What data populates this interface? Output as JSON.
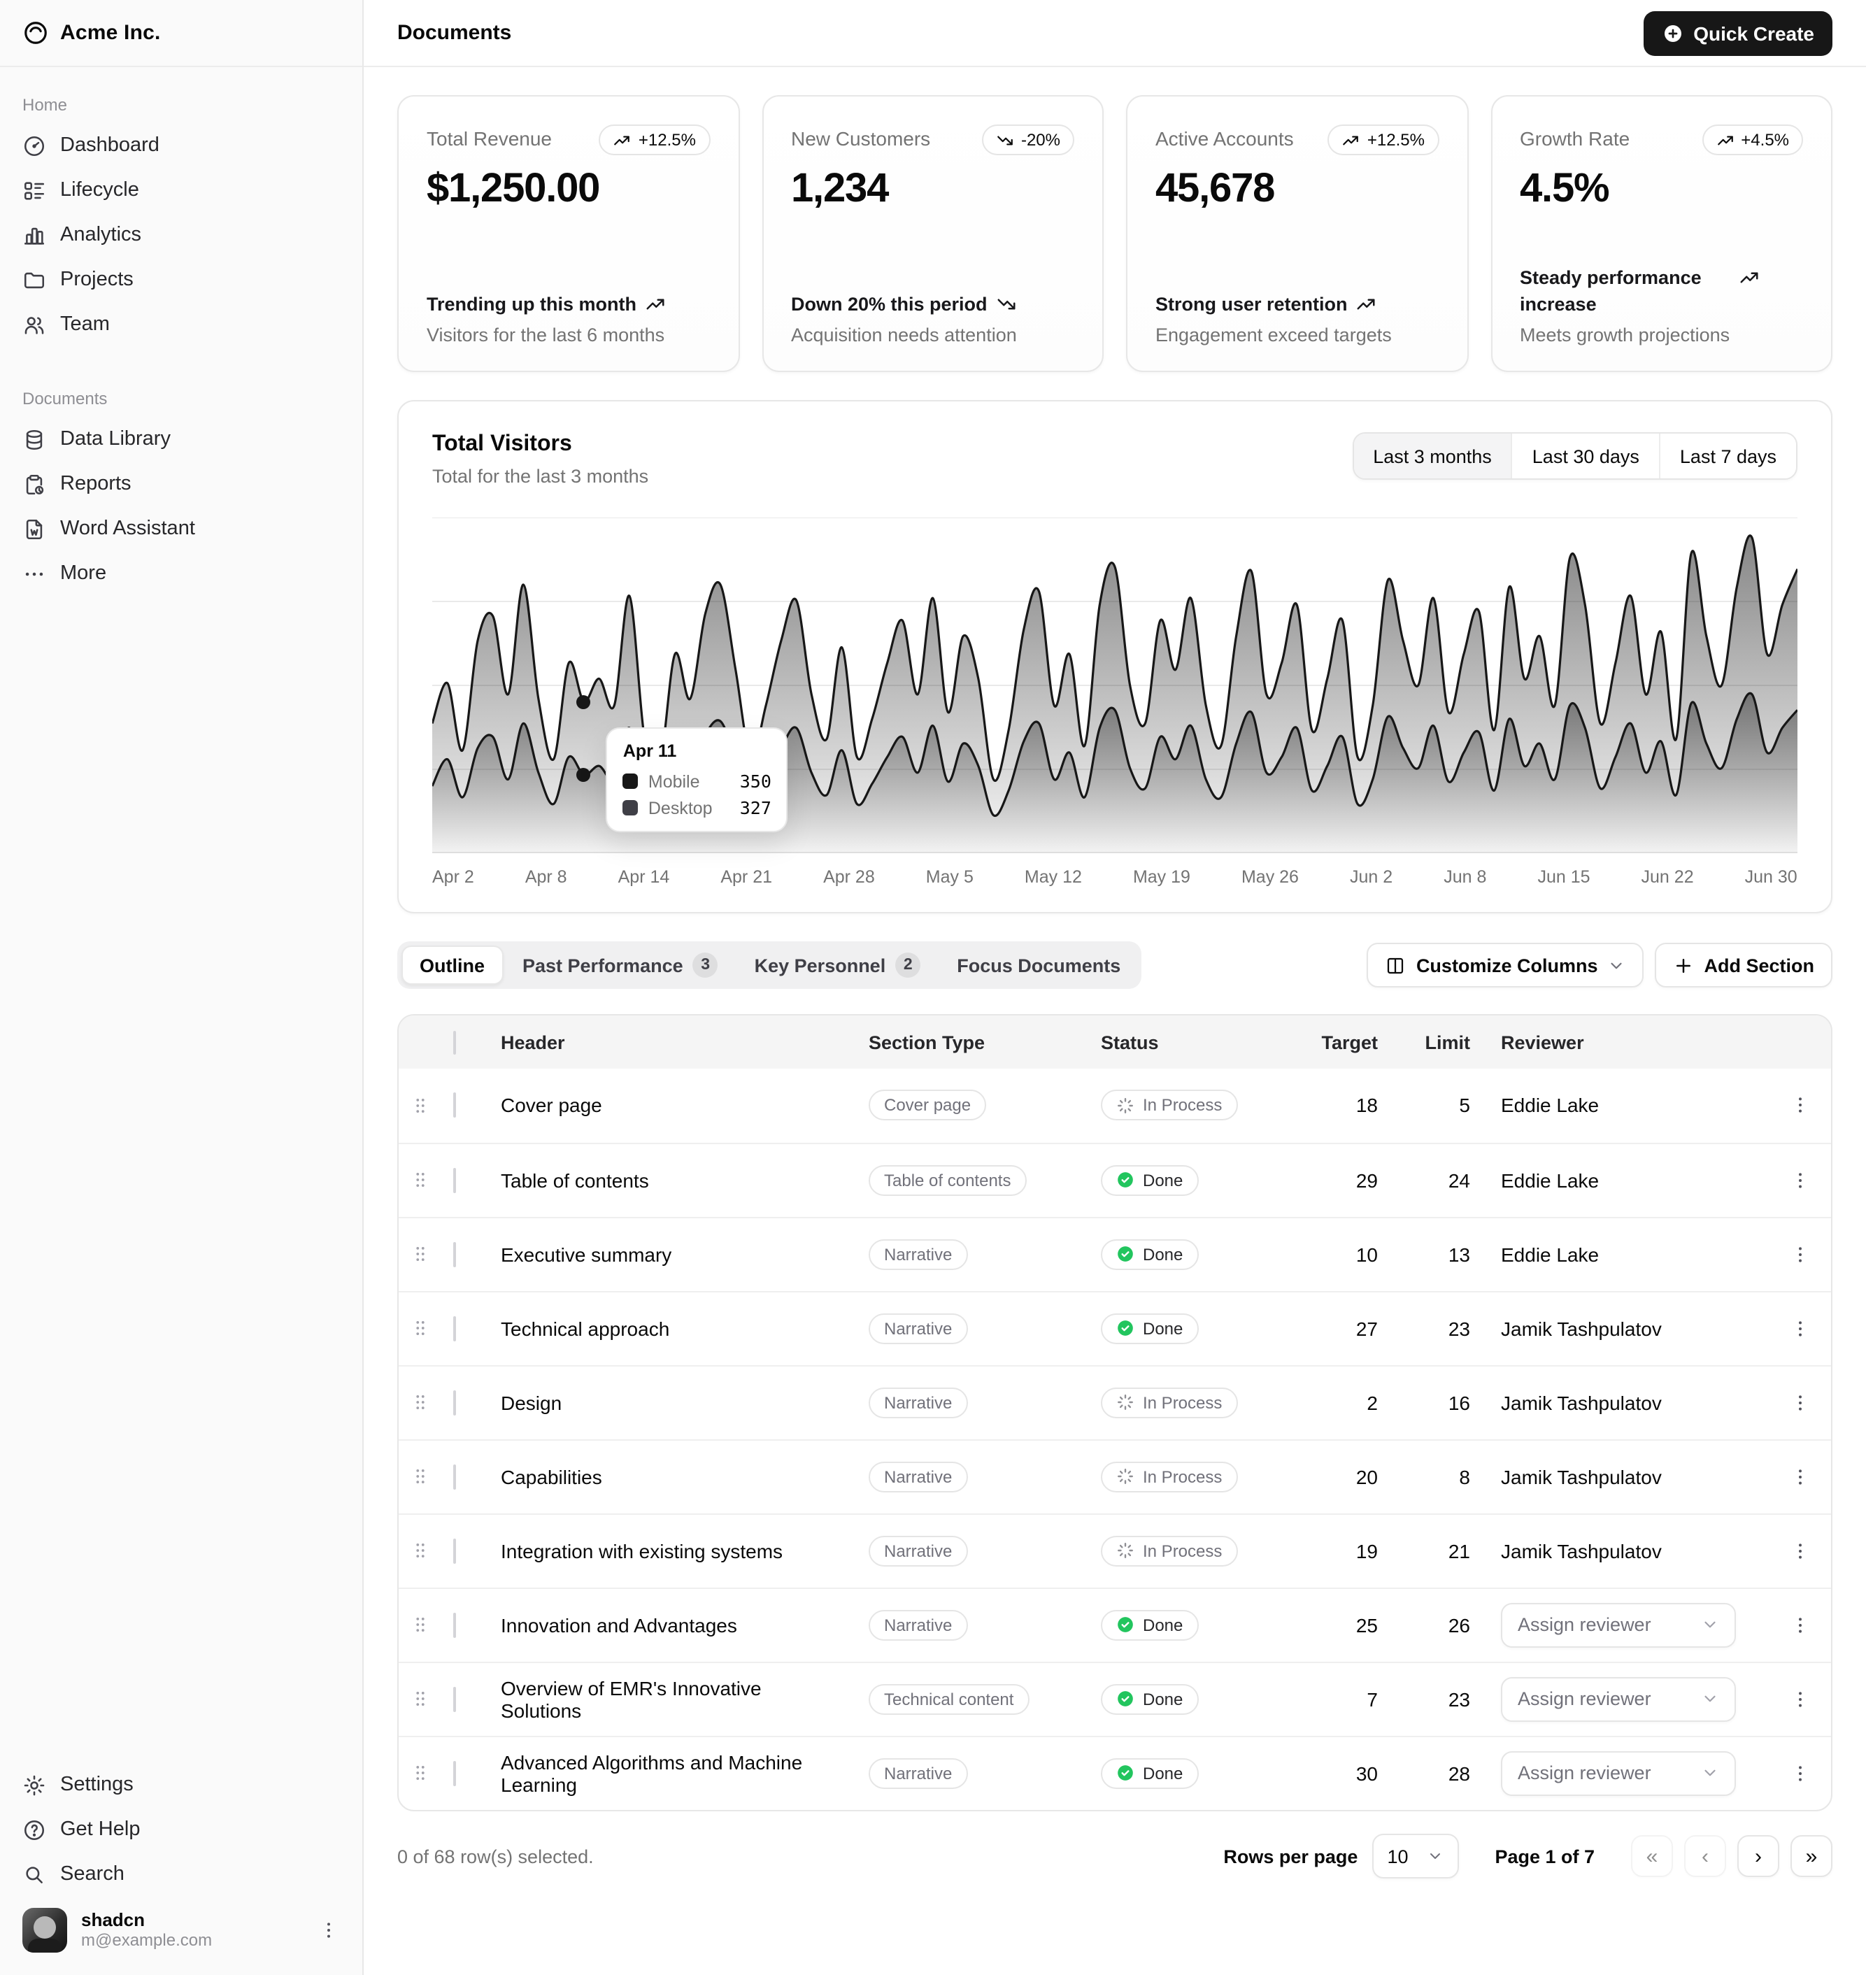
{
  "sidebar": {
    "brand": "Acme Inc.",
    "groups": [
      {
        "label": "Home",
        "items": [
          {
            "label": "Dashboard"
          },
          {
            "label": "Lifecycle"
          },
          {
            "label": "Analytics"
          },
          {
            "label": "Projects"
          },
          {
            "label": "Team"
          }
        ]
      },
      {
        "label": "Documents",
        "items": [
          {
            "label": "Data Library"
          },
          {
            "label": "Reports"
          },
          {
            "label": "Word Assistant"
          },
          {
            "label": "More"
          }
        ]
      }
    ],
    "footer_items": [
      {
        "label": "Settings"
      },
      {
        "label": "Get Help"
      },
      {
        "label": "Search"
      }
    ],
    "user": {
      "name": "shadcn",
      "email": "m@example.com"
    }
  },
  "header": {
    "title": "Documents",
    "quick_create_label": "Quick Create"
  },
  "cards": [
    {
      "label": "Total Revenue",
      "badge": "+12.5%",
      "trend": "up",
      "value": "$1,250.00",
      "line1": "Trending up this month",
      "line2": "Visitors for the last 6 months"
    },
    {
      "label": "New Customers",
      "badge": "-20%",
      "trend": "down",
      "value": "1,234",
      "line1": "Down 20% this period",
      "line2": "Acquisition needs attention"
    },
    {
      "label": "Active Accounts",
      "badge": "+12.5%",
      "trend": "up",
      "value": "45,678",
      "line1": "Strong user retention",
      "line2": "Engagement exceed targets"
    },
    {
      "label": "Growth Rate",
      "badge": "+4.5%",
      "trend": "up",
      "value": "4.5%",
      "line1": "Steady performance increase",
      "line2": "Meets growth projections"
    }
  ],
  "chart": {
    "title": "Total Visitors",
    "subtitle": "Total for the last 3 months",
    "ranges": [
      {
        "label": "Last 3 months",
        "active": true
      },
      {
        "label": "Last 30 days",
        "active": false
      },
      {
        "label": "Last 7 days",
        "active": false
      }
    ],
    "tooltip": {
      "date": "Apr 11",
      "rows": [
        {
          "label": "Mobile",
          "value": "350"
        },
        {
          "label": "Desktop",
          "value": "327"
        }
      ]
    }
  },
  "tabs": [
    {
      "label": "Outline",
      "active": true
    },
    {
      "label": "Past Performance",
      "badge": "3"
    },
    {
      "label": "Key Personnel",
      "badge": "2"
    },
    {
      "label": "Focus Documents"
    }
  ],
  "toolbar": {
    "customize_columns": "Customize Columns",
    "add_section": "Add Section"
  },
  "table": {
    "columns": {
      "header": "Header",
      "type": "Section Type",
      "status": "Status",
      "target": "Target",
      "limit": "Limit",
      "reviewer": "Reviewer"
    },
    "rows": [
      {
        "header": "Cover page",
        "type": "Cover page",
        "status": "In Process",
        "target": "18",
        "limit": "5",
        "reviewer": "Eddie Lake"
      },
      {
        "header": "Table of contents",
        "type": "Table of contents",
        "status": "Done",
        "target": "29",
        "limit": "24",
        "reviewer": "Eddie Lake"
      },
      {
        "header": "Executive summary",
        "type": "Narrative",
        "status": "Done",
        "target": "10",
        "limit": "13",
        "reviewer": "Eddie Lake"
      },
      {
        "header": "Technical approach",
        "type": "Narrative",
        "status": "Done",
        "target": "27",
        "limit": "23",
        "reviewer": "Jamik Tashpulatov"
      },
      {
        "header": "Design",
        "type": "Narrative",
        "status": "In Process",
        "target": "2",
        "limit": "16",
        "reviewer": "Jamik Tashpulatov"
      },
      {
        "header": "Capabilities",
        "type": "Narrative",
        "status": "In Process",
        "target": "20",
        "limit": "8",
        "reviewer": "Jamik Tashpulatov"
      },
      {
        "header": "Integration with existing systems",
        "type": "Narrative",
        "status": "In Process",
        "target": "19",
        "limit": "21",
        "reviewer": "Jamik Tashpulatov"
      },
      {
        "header": "Innovation and Advantages",
        "type": "Narrative",
        "status": "Done",
        "target": "25",
        "limit": "26",
        "reviewer": "Assign reviewer"
      },
      {
        "header": "Overview of EMR's Innovative Solutions",
        "type": "Technical content",
        "status": "Done",
        "target": "7",
        "limit": "23",
        "reviewer": "Assign reviewer"
      },
      {
        "header": "Advanced Algorithms and Machine Learning",
        "type": "Narrative",
        "status": "Done",
        "target": "30",
        "limit": "28",
        "reviewer": "Assign reviewer"
      }
    ]
  },
  "pagination": {
    "selected_text": "0 of 68 row(s) selected.",
    "rows_per_page_label": "Rows per page",
    "rows_per_page": "10",
    "page_text": "Page 1 of 7"
  },
  "chart_data": {
    "type": "area",
    "stacked": true,
    "title": "Total Visitors",
    "x_tick_labels": [
      "Apr 2",
      "Apr 8",
      "Apr 14",
      "Apr 21",
      "Apr 28",
      "May 5",
      "May 12",
      "May 19",
      "May 26",
      "Jun 2",
      "Jun 8",
      "Jun 15",
      "Jun 22",
      "Jun 30"
    ],
    "ylim": [
      0,
      1500
    ],
    "grid": true,
    "highlight": {
      "date": "Apr 11",
      "index": 10,
      "mobile": 350,
      "desktop": 327
    },
    "series": [
      {
        "name": "Mobile",
        "values": [
          300,
          420,
          250,
          470,
          520,
          330,
          580,
          360,
          220,
          430,
          350,
          390,
          330,
          560,
          260,
          210,
          450,
          360,
          530,
          590,
          420,
          220,
          330,
          470,
          560,
          360,
          260,
          460,
          220,
          310,
          430,
          520,
          360,
          570,
          320,
          490,
          390,
          170,
          280,
          500,
          580,
          330,
          450,
          250,
          560,
          640,
          380,
          290,
          520,
          420,
          570,
          330,
          250,
          490,
          630,
          360,
          430,
          560,
          280,
          390,
          520,
          220,
          330,
          610,
          470,
          380,
          570,
          320,
          450,
          540,
          280,
          600,
          390,
          490,
          330,
          660,
          560,
          290,
          430,
          580,
          360,
          500,
          260,
          670,
          490,
          380,
          600,
          710,
          450,
          560,
          640
        ]
      },
      {
        "name": "Desktop",
        "values": [
          280,
          340,
          210,
          480,
          540,
          380,
          620,
          330,
          200,
          420,
          327,
          390,
          330,
          590,
          250,
          190,
          440,
          330,
          540,
          610,
          400,
          210,
          330,
          480,
          570,
          350,
          250,
          460,
          210,
          290,
          420,
          520,
          350,
          570,
          310,
          480,
          390,
          160,
          270,
          500,
          590,
          330,
          440,
          230,
          550,
          640,
          370,
          290,
          520,
          400,
          570,
          330,
          230,
          480,
          630,
          350,
          420,
          550,
          270,
          390,
          520,
          210,
          330,
          610,
          480,
          370,
          570,
          310,
          440,
          540,
          270,
          590,
          390,
          480,
          330,
          660,
          550,
          290,
          420,
          570,
          350,
          490,
          250,
          670,
          480,
          370,
          590,
          700,
          440,
          550,
          630
        ]
      }
    ]
  }
}
